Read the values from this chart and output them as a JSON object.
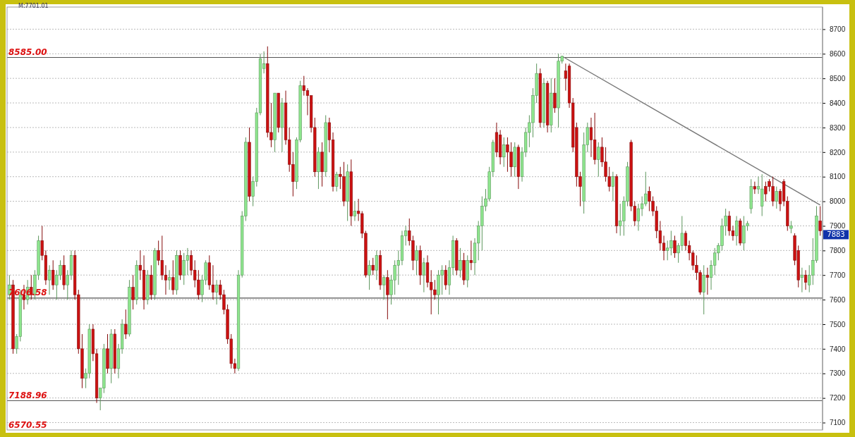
{
  "chart_data": {
    "type": "candlestick",
    "categories": [
      null,
      null,
      null,
      null,
      null,
      null,
      null,
      null,
      null,
      null,
      null,
      null,
      null,
      null,
      null,
      null,
      null,
      null,
      null,
      null,
      null,
      null,
      null,
      null,
      null,
      null,
      null,
      null,
      null,
      null,
      null,
      null,
      null,
      null,
      null,
      null,
      null,
      null,
      null,
      null,
      null,
      null,
      null,
      null,
      null,
      null,
      null,
      null,
      null,
      null,
      null,
      null,
      null,
      null,
      null,
      null,
      null,
      null,
      null,
      null,
      null,
      null,
      null,
      null,
      null,
      null,
      null,
      null,
      null,
      null,
      null,
      null,
      null,
      null,
      null,
      null,
      null,
      null,
      null,
      null,
      null,
      null,
      null,
      null,
      null,
      null,
      null,
      null,
      null,
      null,
      null,
      null,
      null,
      null,
      null,
      null,
      null,
      null,
      null,
      null,
      null,
      null,
      null,
      null,
      null,
      null,
      null,
      null,
      null,
      null,
      null,
      null,
      null,
      null,
      null,
      null,
      null,
      null,
      null,
      null,
      null,
      null,
      null,
      null,
      null,
      null,
      null,
      null,
      null,
      null,
      null,
      null,
      null,
      null,
      null,
      null,
      null,
      null,
      null,
      null,
      null,
      null,
      null,
      null,
      null,
      null,
      null,
      null,
      null,
      null,
      null,
      null,
      null,
      null,
      null,
      null,
      null,
      null,
      null,
      null,
      null,
      null,
      null,
      null,
      null,
      null,
      null,
      null,
      null,
      null,
      null,
      null,
      null,
      null,
      null,
      null,
      null,
      null,
      null,
      null,
      null,
      null,
      null,
      null,
      null,
      null,
      null,
      null,
      null,
      null,
      null,
      null,
      null,
      null,
      null,
      null,
      null,
      null,
      null,
      null,
      null,
      null,
      null,
      null,
      null,
      null,
      null,
      null,
      null,
      null,
      null,
      null,
      null,
      null,
      null,
      null,
      null,
      null,
      null,
      null,
      null,
      null,
      null,
      null
    ],
    "ohlc": [
      [
        7620,
        7700,
        7600,
        7660
      ],
      [
        7660,
        7680,
        7380,
        7400
      ],
      [
        7400,
        7460,
        7380,
        7450
      ],
      [
        7450,
        7640,
        7430,
        7620
      ],
      [
        7620,
        7660,
        7560,
        7600
      ],
      [
        7600,
        7680,
        7580,
        7650
      ],
      [
        7650,
        7700,
        7600,
        7620
      ],
      [
        7620,
        7720,
        7600,
        7700
      ],
      [
        7700,
        7860,
        7680,
        7840
      ],
      [
        7840,
        7900,
        7760,
        7780
      ],
      [
        7780,
        7800,
        7660,
        7680
      ],
      [
        7680,
        7740,
        7620,
        7720
      ],
      [
        7720,
        7760,
        7640,
        7660
      ],
      [
        7660,
        7720,
        7600,
        7700
      ],
      [
        7700,
        7760,
        7680,
        7740
      ],
      [
        7740,
        7780,
        7640,
        7660
      ],
      [
        7660,
        7720,
        7600,
        7700
      ],
      [
        7700,
        7800,
        7680,
        7780
      ],
      [
        7780,
        7800,
        7600,
        7620
      ],
      [
        7620,
        7640,
        7380,
        7400
      ],
      [
        7400,
        7460,
        7240,
        7280
      ],
      [
        7280,
        7320,
        7240,
        7300
      ],
      [
        7300,
        7500,
        7280,
        7480
      ],
      [
        7480,
        7500,
        7350,
        7380
      ],
      [
        7380,
        7400,
        7180,
        7200
      ],
      [
        7200,
        7240,
        7150,
        7240
      ],
      [
        7240,
        7420,
        7220,
        7400
      ],
      [
        7400,
        7460,
        7300,
        7320
      ],
      [
        7320,
        7480,
        7260,
        7460
      ],
      [
        7460,
        7480,
        7300,
        7320
      ],
      [
        7320,
        7420,
        7280,
        7400
      ],
      [
        7400,
        7520,
        7380,
        7500
      ],
      [
        7500,
        7560,
        7440,
        7460
      ],
      [
        7460,
        7680,
        7450,
        7650
      ],
      [
        7650,
        7700,
        7560,
        7600
      ],
      [
        7600,
        7760,
        7580,
        7740
      ],
      [
        7740,
        7800,
        7680,
        7720
      ],
      [
        7720,
        7780,
        7560,
        7600
      ],
      [
        7600,
        7720,
        7580,
        7700
      ],
      [
        7700,
        7740,
        7600,
        7620
      ],
      [
        7620,
        7810,
        7600,
        7800
      ],
      [
        7800,
        7840,
        7740,
        7760
      ],
      [
        7760,
        7860,
        7680,
        7700
      ],
      [
        7700,
        7740,
        7620,
        7680
      ],
      [
        7680,
        7720,
        7640,
        7690
      ],
      [
        7690,
        7760,
        7620,
        7640
      ],
      [
        7640,
        7800,
        7620,
        7780
      ],
      [
        7780,
        7800,
        7680,
        7700
      ],
      [
        7700,
        7790,
        7660,
        7760
      ],
      [
        7760,
        7810,
        7700,
        7780
      ],
      [
        7780,
        7800,
        7700,
        7720
      ],
      [
        7720,
        7760,
        7650,
        7680
      ],
      [
        7680,
        7720,
        7600,
        7620
      ],
      [
        7620,
        7700,
        7590,
        7680
      ],
      [
        7680,
        7760,
        7660,
        7750
      ],
      [
        7750,
        7780,
        7640,
        7660
      ],
      [
        7660,
        7740,
        7600,
        7630
      ],
      [
        7630,
        7680,
        7580,
        7660
      ],
      [
        7660,
        7680,
        7600,
        7620
      ],
      [
        7620,
        7640,
        7540,
        7560
      ],
      [
        7560,
        7580,
        7420,
        7440
      ],
      [
        7440,
        7460,
        7320,
        7340
      ],
      [
        7340,
        7360,
        7300,
        7320
      ],
      [
        7320,
        7720,
        7310,
        7700
      ],
      [
        7700,
        7960,
        7690,
        7940
      ],
      [
        7940,
        8260,
        7920,
        8240
      ],
      [
        8240,
        8300,
        8000,
        8020
      ],
      [
        8020,
        8100,
        7980,
        8080
      ],
      [
        8080,
        8380,
        8060,
        8360
      ],
      [
        8360,
        8600,
        8350,
        8580
      ],
      [
        8540,
        8610,
        8520,
        8560
      ],
      [
        8560,
        8630,
        8260,
        8280
      ],
      [
        8280,
        8400,
        8220,
        8250
      ],
      [
        8250,
        8440,
        8200,
        8440
      ],
      [
        8440,
        8440,
        8280,
        8300
      ],
      [
        8300,
        8420,
        8200,
        8400
      ],
      [
        8400,
        8450,
        8230,
        8250
      ],
      [
        8250,
        8300,
        8120,
        8150
      ],
      [
        8150,
        8200,
        8020,
        8080
      ],
      [
        8080,
        8260,
        8050,
        8250
      ],
      [
        8250,
        8490,
        8240,
        8470
      ],
      [
        8470,
        8510,
        8430,
        8450
      ],
      [
        8450,
        8460,
        8350,
        8430
      ],
      [
        8430,
        8430,
        8280,
        8300
      ],
      [
        8300,
        8340,
        8100,
        8120
      ],
      [
        8120,
        8220,
        8050,
        8200
      ],
      [
        8200,
        8240,
        8060,
        8120
      ],
      [
        8120,
        8350,
        8100,
        8320
      ],
      [
        8320,
        8340,
        8200,
        8250
      ],
      [
        8250,
        8280,
        8040,
        8060
      ],
      [
        8060,
        8120,
        8040,
        8110
      ],
      [
        8110,
        8140,
        8050,
        8100
      ],
      [
        8100,
        8160,
        7980,
        8000
      ],
      [
        8000,
        8150,
        7920,
        8120
      ],
      [
        8120,
        8170,
        7900,
        7940
      ],
      [
        7940,
        8000,
        7920,
        7960
      ],
      [
        7960,
        8010,
        7920,
        7950
      ],
      [
        7950,
        7960,
        7850,
        7870
      ],
      [
        7870,
        7880,
        7690,
        7700
      ],
      [
        7700,
        7760,
        7640,
        7740
      ],
      [
        7740,
        7770,
        7700,
        7720
      ],
      [
        7720,
        7800,
        7680,
        7780
      ],
      [
        7780,
        7800,
        7640,
        7660
      ],
      [
        7660,
        7700,
        7600,
        7690
      ],
      [
        7690,
        7720,
        7520,
        7620
      ],
      [
        7620,
        7700,
        7580,
        7680
      ],
      [
        7680,
        7760,
        7620,
        7740
      ],
      [
        7740,
        7800,
        7660,
        7760
      ],
      [
        7760,
        7880,
        7740,
        7860
      ],
      [
        7860,
        7900,
        7820,
        7880
      ],
      [
        7880,
        7930,
        7820,
        7840
      ],
      [
        7840,
        7860,
        7720,
        7760
      ],
      [
        7760,
        7820,
        7700,
        7800
      ],
      [
        7800,
        7820,
        7660,
        7700
      ],
      [
        7700,
        7770,
        7630,
        7750
      ],
      [
        7750,
        7780,
        7650,
        7670
      ],
      [
        7670,
        7720,
        7540,
        7640
      ],
      [
        7640,
        7680,
        7600,
        7620
      ],
      [
        7620,
        7720,
        7540,
        7700
      ],
      [
        7700,
        7740,
        7620,
        7720
      ],
      [
        7720,
        7740,
        7640,
        7660
      ],
      [
        7660,
        7760,
        7620,
        7730
      ],
      [
        7730,
        7860,
        7700,
        7840
      ],
      [
        7840,
        7850,
        7700,
        7720
      ],
      [
        7720,
        7810,
        7690,
        7760
      ],
      [
        7760,
        7790,
        7660,
        7680
      ],
      [
        7680,
        7780,
        7650,
        7760
      ],
      [
        7760,
        7840,
        7720,
        7750
      ],
      [
        7750,
        7850,
        7700,
        7830
      ],
      [
        7830,
        7920,
        7760,
        7900
      ],
      [
        7900,
        8020,
        7800,
        7980
      ],
      [
        7980,
        8050,
        7960,
        8010
      ],
      [
        8010,
        8140,
        8000,
        8120
      ],
      [
        8120,
        8250,
        8100,
        8240
      ],
      [
        8280,
        8320,
        8180,
        8200
      ],
      [
        8270,
        8290,
        8150,
        8180
      ],
      [
        8180,
        8260,
        8140,
        8230
      ],
      [
        8230,
        8260,
        8120,
        8200
      ],
      [
        8200,
        8240,
        8100,
        8140
      ],
      [
        8140,
        8240,
        8100,
        8220
      ],
      [
        8220,
        8230,
        8050,
        8100
      ],
      [
        8100,
        8220,
        8080,
        8200
      ],
      [
        8200,
        8300,
        8180,
        8280
      ],
      [
        8280,
        8350,
        8220,
        8320
      ],
      [
        8320,
        8460,
        8260,
        8430
      ],
      [
        8430,
        8560,
        8400,
        8520
      ],
      [
        8520,
        8540,
        8300,
        8320
      ],
      [
        8320,
        8500,
        8300,
        8480
      ],
      [
        8480,
        8490,
        8280,
        8310
      ],
      [
        8310,
        8500,
        8280,
        8440
      ],
      [
        8440,
        8500,
        8360,
        8380
      ],
      [
        8380,
        8600,
        8300,
        8570
      ],
      [
        8570,
        8590,
        8560,
        8590
      ],
      [
        8530,
        8560,
        8450,
        8500
      ],
      [
        8550,
        8560,
        8380,
        8400
      ],
      [
        8400,
        8420,
        8200,
        8220
      ],
      [
        8300,
        8320,
        8060,
        8100
      ],
      [
        8100,
        8120,
        7980,
        8060
      ],
      [
        8000,
        8280,
        7950,
        8230
      ],
      [
        8230,
        8320,
        8200,
        8300
      ],
      [
        8300,
        8340,
        8180,
        8250
      ],
      [
        8250,
        8360,
        8150,
        8170
      ],
      [
        8170,
        8240,
        8100,
        8220
      ],
      [
        8220,
        8260,
        8140,
        8160
      ],
      [
        8160,
        8220,
        8080,
        8100
      ],
      [
        8100,
        8140,
        8040,
        8060
      ],
      [
        8060,
        8120,
        8000,
        8100
      ],
      [
        8100,
        8110,
        7870,
        7900
      ],
      [
        7900,
        7990,
        7860,
        7920
      ],
      [
        7920,
        8020,
        7860,
        8000
      ],
      [
        8000,
        8160,
        7980,
        8140
      ],
      [
        8240,
        8250,
        7960,
        7980
      ],
      [
        7980,
        8000,
        7900,
        7920
      ],
      [
        7920,
        7990,
        7880,
        7970
      ],
      [
        7970,
        8020,
        7940,
        7990
      ],
      [
        7990,
        8120,
        7980,
        8030
      ],
      [
        8040,
        8060,
        7960,
        8000
      ],
      [
        8000,
        8020,
        7940,
        7960
      ],
      [
        7960,
        7980,
        7850,
        7880
      ],
      [
        7880,
        7920,
        7800,
        7830
      ],
      [
        7830,
        7860,
        7760,
        7800
      ],
      [
        7800,
        7840,
        7760,
        7810
      ],
      [
        7810,
        7880,
        7780,
        7840
      ],
      [
        7840,
        7860,
        7770,
        7790
      ],
      [
        7790,
        7830,
        7750,
        7820
      ],
      [
        7820,
        7940,
        7800,
        7870
      ],
      [
        7870,
        7880,
        7800,
        7820
      ],
      [
        7820,
        7840,
        7760,
        7790
      ],
      [
        7790,
        7800,
        7720,
        7740
      ],
      [
        7740,
        7780,
        7680,
        7710
      ],
      [
        7710,
        7720,
        7620,
        7630
      ],
      [
        7630,
        7740,
        7540,
        7700
      ],
      [
        7700,
        7730,
        7620,
        7690
      ],
      [
        7690,
        7760,
        7640,
        7740
      ],
      [
        7740,
        7810,
        7700,
        7790
      ],
      [
        7790,
        7830,
        7760,
        7820
      ],
      [
        7820,
        7930,
        7800,
        7900
      ],
      [
        7900,
        7970,
        7860,
        7940
      ],
      [
        7940,
        7960,
        7860,
        7880
      ],
      [
        7880,
        7900,
        7840,
        7860
      ],
      [
        7860,
        7940,
        7820,
        7920
      ],
      [
        7920,
        7930,
        7820,
        7830
      ],
      [
        7830,
        7940,
        7800,
        7900
      ],
      [
        7900,
        7920,
        7880,
        7910
      ],
      [
        7970,
        8090,
        7950,
        8060
      ],
      [
        8060,
        8080,
        8030,
        8050
      ],
      [
        8050,
        8100,
        8030,
        8060
      ],
      [
        7980,
        8110,
        7940,
        8050
      ],
      [
        8060,
        8080,
        8000,
        8030
      ],
      [
        8080,
        8090,
        8040,
        8060
      ],
      [
        8060,
        8100,
        7980,
        8000
      ],
      [
        8000,
        8060,
        7970,
        8040
      ],
      [
        8040,
        8050,
        7960,
        7990
      ],
      [
        8080,
        8090,
        7980,
        8000
      ],
      [
        8000,
        8020,
        7880,
        7900
      ],
      [
        7890,
        7920,
        7870,
        7900
      ],
      [
        7860,
        7870,
        7740,
        7760
      ],
      [
        7800,
        7820,
        7650,
        7680
      ],
      [
        7690,
        7730,
        7630,
        7700
      ],
      [
        7700,
        7720,
        7640,
        7670
      ],
      [
        7660,
        7740,
        7630,
        7700
      ],
      [
        7700,
        7850,
        7660,
        7760
      ],
      [
        7760,
        7980,
        7750,
        7940
      ],
      [
        7920,
        7980,
        7860,
        7880
      ]
    ],
    "colors": [
      "#8ee68e",
      "#cc1111",
      "#8ee68e",
      "#8ee68e",
      "#cc1111",
      "#8ee68e",
      "#cc1111",
      "#8ee68e",
      "#8ee68e",
      "#cc1111",
      "#cc1111",
      "#8ee68e",
      "#cc1111",
      "#8ee68e",
      "#8ee68e",
      "#cc1111",
      "#8ee68e",
      "#8ee68e",
      "#cc1111",
      "#cc1111",
      "#cc1111",
      "#8ee68e",
      "#8ee68e",
      "#cc1111",
      "#cc1111",
      "#8ee68e",
      "#8ee68e",
      "#cc1111",
      "#8ee68e",
      "#cc1111",
      "#8ee68e",
      "#8ee68e",
      "#cc1111",
      "#8ee68e",
      "#cc1111",
      "#8ee68e",
      "#cc1111",
      "#cc1111",
      "#8ee68e",
      "#cc1111",
      "#8ee68e",
      "#cc1111",
      "#cc1111",
      "#cc1111",
      "#8ee68e",
      "#cc1111",
      "#8ee68e",
      "#cc1111",
      "#8ee68e",
      "#8ee68e",
      "#cc1111",
      "#cc1111",
      "#cc1111",
      "#8ee68e",
      "#8ee68e",
      "#cc1111",
      "#cc1111",
      "#8ee68e",
      "#cc1111",
      "#cc1111",
      "#cc1111",
      "#cc1111",
      "#cc1111",
      "#8ee68e",
      "#8ee68e",
      "#8ee68e",
      "#cc1111",
      "#8ee68e",
      "#8ee68e",
      "#8ee68e",
      "#8ee68e",
      "#cc1111",
      "#cc1111",
      "#8ee68e",
      "#cc1111",
      "#8ee68e",
      "#cc1111",
      "#cc1111",
      "#cc1111",
      "#8ee68e",
      "#8ee68e",
      "#cc1111",
      "#cc1111",
      "#cc1111",
      "#cc1111",
      "#8ee68e",
      "#cc1111",
      "#8ee68e",
      "#cc1111",
      "#cc1111",
      "#8ee68e",
      "#cc1111",
      "#cc1111",
      "#8ee68e",
      "#cc1111",
      "#8ee68e",
      "#cc1111",
      "#cc1111",
      "#cc1111",
      "#8ee68e",
      "#cc1111",
      "#8ee68e",
      "#cc1111",
      "#8ee68e",
      "#cc1111",
      "#8ee68e",
      "#8ee68e",
      "#8ee68e",
      "#8ee68e",
      "#8ee68e",
      "#cc1111",
      "#cc1111",
      "#8ee68e",
      "#cc1111",
      "#8ee68e",
      "#cc1111",
      "#cc1111",
      "#cc1111",
      "#8ee68e",
      "#8ee68e",
      "#cc1111",
      "#8ee68e",
      "#8ee68e",
      "#cc1111",
      "#8ee68e",
      "#cc1111",
      "#8ee68e",
      "#cc1111",
      "#8ee68e",
      "#8ee68e",
      "#8ee68e",
      "#8ee68e",
      "#8ee68e",
      "#8ee68e",
      "#cc1111",
      "#cc1111",
      "#8ee68e",
      "#cc1111",
      "#cc1111",
      "#8ee68e",
      "#cc1111",
      "#8ee68e",
      "#8ee68e",
      "#8ee68e",
      "#8ee68e",
      "#8ee68e",
      "#cc1111",
      "#8ee68e",
      "#cc1111",
      "#8ee68e",
      "#cc1111",
      "#8ee68e",
      "#8ee68e",
      "#cc1111",
      "#cc1111",
      "#cc1111",
      "#cc1111",
      "#cc1111",
      "#8ee68e",
      "#8ee68e",
      "#cc1111",
      "#cc1111",
      "#8ee68e",
      "#cc1111",
      "#cc1111",
      "#cc1111",
      "#8ee68e",
      "#cc1111",
      "#8ee68e",
      "#8ee68e",
      "#8ee68e",
      "#cc1111",
      "#cc1111",
      "#8ee68e",
      "#8ee68e",
      "#8ee68e",
      "#cc1111",
      "#cc1111",
      "#cc1111",
      "#cc1111",
      "#cc1111",
      "#8ee68e",
      "#8ee68e",
      "#cc1111",
      "#8ee68e",
      "#8ee68e",
      "#cc1111",
      "#cc1111",
      "#cc1111",
      "#cc1111",
      "#cc1111",
      "#8ee68e",
      "#cc1111",
      "#8ee68e",
      "#8ee68e",
      "#8ee68e",
      "#8ee68e",
      "#8ee68e",
      "#cc1111",
      "#cc1111",
      "#8ee68e",
      "#cc1111",
      "#8ee68e",
      "#8ee68e",
      "#8ee68e",
      "#cc1111",
      "#8ee68e",
      "#8ee68e",
      "#cc1111",
      "#cc1111",
      "#cc1111",
      "#8ee68e",
      "#cc1111",
      "#cc1111",
      "#cc1111",
      "#8ee68e",
      "#cc1111",
      "#cc1111",
      "#8ee68e",
      "#cc1111",
      "#8ee68e",
      "#8ee68e",
      "#8ee68e",
      "#cc1111"
    ],
    "series": [
      {
        "type": "line",
        "color": "#777777",
        "values": [
          null,
          null,
          null,
          null,
          null,
          null,
          null,
          null,
          null,
          null,
          null,
          null,
          null,
          null,
          null,
          null,
          null,
          null,
          null,
          null,
          null,
          null,
          null,
          null,
          null,
          null,
          null,
          null,
          null,
          null,
          null,
          null,
          null,
          null,
          null,
          null,
          null,
          null,
          null,
          null,
          null,
          null,
          null,
          null,
          null,
          null,
          null,
          null,
          null,
          null,
          null,
          null,
          null,
          null,
          null,
          null,
          null,
          null,
          null,
          null,
          null,
          null,
          null,
          null,
          null,
          null,
          null,
          null,
          null,
          null,
          null,
          null,
          null,
          null,
          null,
          null,
          null,
          null,
          null,
          null,
          null,
          null,
          null,
          null,
          null,
          null,
          null,
          null,
          null,
          null,
          null,
          null,
          null,
          null,
          null,
          null,
          null,
          null,
          null,
          null,
          null,
          null,
          null,
          null,
          null,
          null,
          null,
          null,
          null,
          null,
          null,
          null,
          null,
          null,
          null,
          null,
          null,
          null,
          null,
          null,
          null,
          null,
          null,
          null,
          null,
          null,
          null,
          null,
          null,
          null,
          null,
          null,
          null,
          null,
          null,
          null,
          null,
          null,
          null,
          null,
          null,
          null,
          null,
          null,
          null,
          null,
          null,
          null,
          null,
          null,
          null,
          null,
          8590,
          null,
          null,
          null,
          null,
          null,
          null,
          null,
          null,
          null,
          null,
          null,
          null,
          null,
          null,
          null,
          null,
          null,
          null,
          null,
          null,
          null,
          null,
          null,
          null,
          null,
          null,
          null,
          null,
          null,
          null,
          null,
          null,
          null,
          null,
          null,
          null,
          null,
          null,
          null,
          null,
          null,
          null,
          null,
          null,
          null,
          null,
          null,
          null,
          null,
          null,
          null,
          null,
          null,
          null,
          null,
          null,
          null,
          null,
          null,
          null,
          null,
          null,
          null,
          null,
          null,
          null,
          null,
          null,
          null,
          null,
          7985
        ]
      }
    ],
    "ylim": [
      7070,
      8790
    ],
    "yticks": [
      7100,
      7200,
      7300,
      7400,
      7500,
      7600,
      7700,
      7800,
      7900,
      8000,
      8100,
      8200,
      8300,
      8400,
      8500,
      8600,
      8700
    ],
    "grid": "y",
    "tick_labels": "y",
    "ref_lines": [
      {
        "axis": "y",
        "value": 8585,
        "label": "8585.00",
        "color": "#555555"
      },
      {
        "axis": "y",
        "value": 7606.58,
        "label": "7606.58",
        "color": "#555555"
      },
      {
        "axis": "y",
        "value": 7188.96,
        "label": "7188.96",
        "color": "#555555"
      }
    ],
    "annotations": [
      "M:7701.01",
      "6570.55",
      "7883"
    ]
  }
}
